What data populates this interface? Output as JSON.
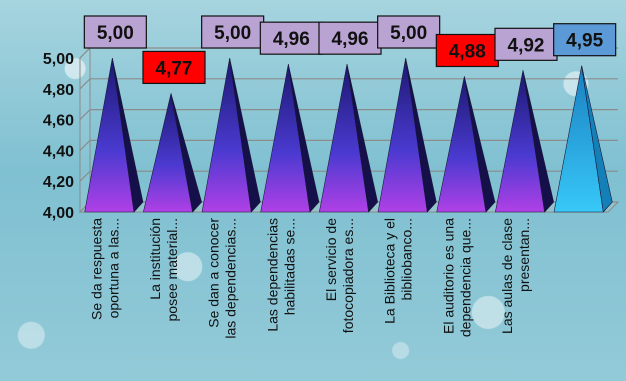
{
  "chart_data": {
    "type": "bar",
    "title": "",
    "xlabel": "",
    "ylabel": "",
    "ylim": [
      4.0,
      5.0
    ],
    "yticks": [
      "4,00",
      "4,20",
      "4,40",
      "4,60",
      "4,80",
      "5,00"
    ],
    "grid": true,
    "categories": [
      [
        "Se da respuesta",
        "oportuna a las..."
      ],
      [
        "La institución",
        "posee material..."
      ],
      [
        "Se dan a conocer",
        "las dependencias..."
      ],
      [
        "Las dependencias",
        "habilitadas se..."
      ],
      [
        "El servicio de",
        "fotocopiadora es..."
      ],
      [
        "La Biblioteca y el",
        "bibliobanco..."
      ],
      [
        "El auditorio es una",
        "dependencia que..."
      ],
      [
        "Las aulas de clase",
        "presentan..."
      ],
      [
        "",
        ""
      ]
    ],
    "values": [
      5.0,
      4.77,
      5.0,
      4.96,
      4.96,
      5.0,
      4.88,
      4.92,
      4.95
    ],
    "data_labels": [
      "5,00",
      "4,77",
      "5,00",
      "4,96",
      "4,96",
      "5,00",
      "4,88",
      "4,92",
      "4,95"
    ],
    "label_colors": [
      "#b9a3d3",
      "#ff0000",
      "#b9a3d3",
      "#b9a3d3",
      "#b9a3d3",
      "#b9a3d3",
      "#ff0000",
      "#b9a3d3",
      "#5b9ad6"
    ],
    "bar_colors": [
      "#3a2fb0",
      "#3a2fb0",
      "#3a2fb0",
      "#3a2fb0",
      "#3a2fb0",
      "#3a2fb0",
      "#3a2fb0",
      "#3a2fb0",
      "#2ab4ee"
    ]
  }
}
